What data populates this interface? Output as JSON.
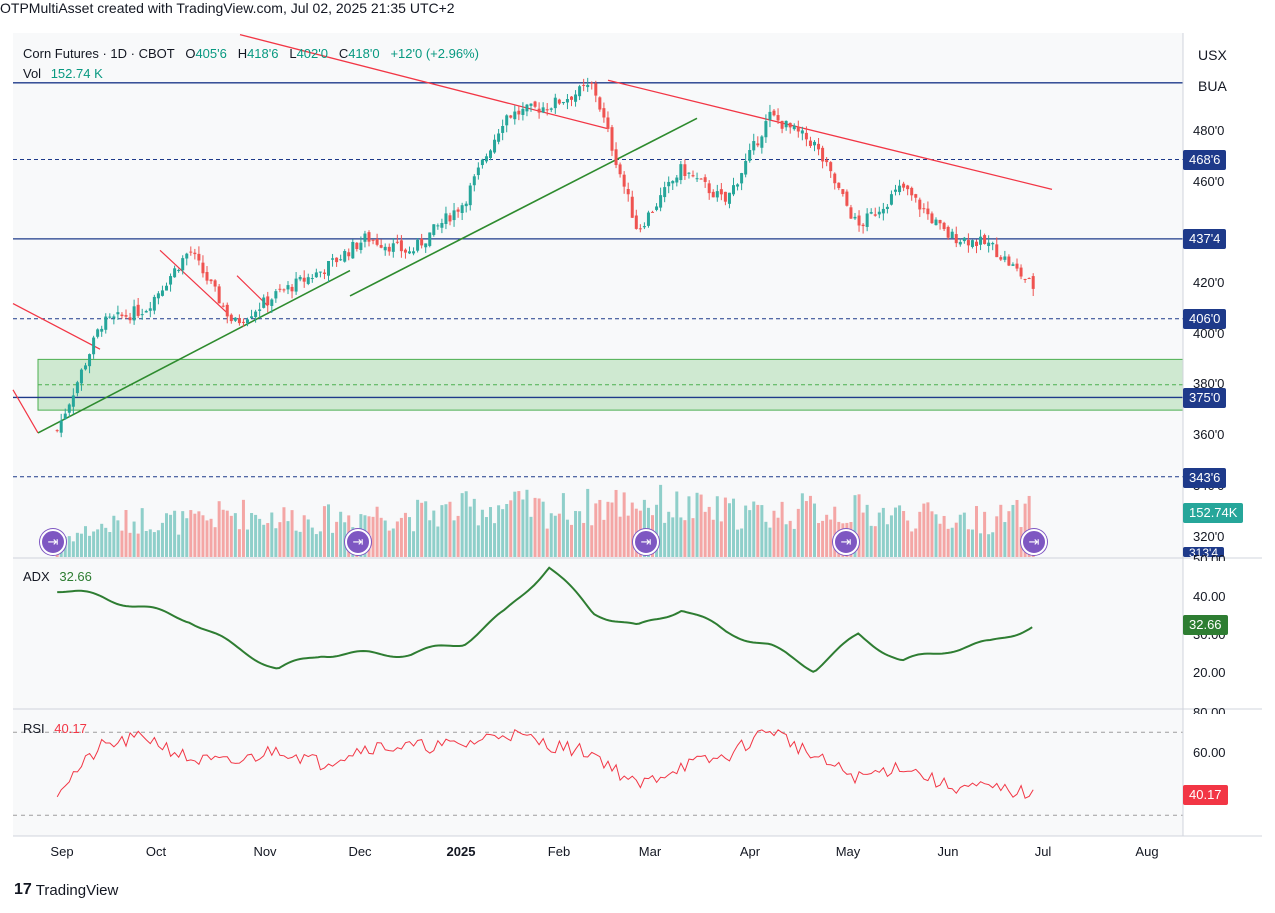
{
  "caption": "OTPMultiAsset created with TradingView.com, Jul 02, 2025 21:35 UTC+2",
  "symbol_boxes": [
    "USX",
    "BUA"
  ],
  "legend": {
    "title": "Corn Futures · 1D · CBOT",
    "open_label": "O",
    "open": "405'6",
    "high_label": "H",
    "high": "418'6",
    "low_label": "L",
    "low": "402'0",
    "close_label": "C",
    "close": "418'0",
    "change": "+12'0 (+2.96%)",
    "vol_label": "Vol",
    "vol": "152.74 K"
  },
  "price_axis_ticks": [
    "480'0",
    "460'0",
    "420'0",
    "400'0",
    "380'0",
    "360'0",
    "340'0",
    "320'0"
  ],
  "price_tags": [
    {
      "label": "468'6",
      "price": 468.75,
      "style": "dashed"
    },
    {
      "label": "437'4",
      "price": 437.5,
      "style": "solid"
    },
    {
      "label": "406'0",
      "price": 406.0,
      "style": "dashed"
    },
    {
      "label": "375'0",
      "price": 375.0,
      "style": "solid"
    },
    {
      "label": "343'6",
      "price": 343.75,
      "style": "dashed"
    }
  ],
  "partial_tags": {
    "top_unlabeled_level": 499,
    "bottom_clipped_tag": "313'4"
  },
  "vol_tag": "152.74K",
  "adx": {
    "label": "ADX",
    "value": "32.66",
    "ticks": [
      "50.00",
      "40.00",
      "30.00",
      "20.00"
    ]
  },
  "rsi": {
    "label": "RSI",
    "value": "40.17",
    "ticks": [
      "80.00",
      "60.00",
      "40.00"
    ]
  },
  "x_axis_labels": [
    {
      "label": "Sep",
      "bold": false
    },
    {
      "label": "Oct",
      "bold": false
    },
    {
      "label": "Nov",
      "bold": false
    },
    {
      "label": "Dec",
      "bold": false
    },
    {
      "label": "2025",
      "bold": true
    },
    {
      "label": "Feb",
      "bold": false
    },
    {
      "label": "Mar",
      "bold": false
    },
    {
      "label": "Apr",
      "bold": false
    },
    {
      "label": "May",
      "bold": false
    },
    {
      "label": "Jun",
      "bold": false
    },
    {
      "label": "Jul",
      "bold": false
    },
    {
      "label": "Aug",
      "bold": false
    }
  ],
  "branding": "TradingView",
  "colors": {
    "up": "#26a69a",
    "down": "#ef5350",
    "level": "#1e3a8a",
    "trend_down": "#f23645",
    "trend_up": "#2e8b2e",
    "zone": "#c8e6c9",
    "adx": "#2e7d32",
    "rsi": "#f23645"
  },
  "chart_data": {
    "type": "candlestick",
    "title": "Corn Futures · 1D · CBOT",
    "x": [
      "2024-08-26",
      "2024-09-09",
      "2024-09-23",
      "2024-10-07",
      "2024-10-21",
      "2024-11-04",
      "2024-11-18",
      "2024-12-02",
      "2024-12-16",
      "2025-01-02",
      "2025-01-15",
      "2025-01-29",
      "2025-02-12",
      "2025-02-26",
      "2025-03-12",
      "2025-03-26",
      "2025-04-09",
      "2025-04-23",
      "2025-05-07",
      "2025-05-21",
      "2025-06-04",
      "2025-06-18",
      "2025-07-02"
    ],
    "series": [
      {
        "name": "Price",
        "values": [
          362,
          404,
          410,
          433,
          404,
          416,
          425,
          438,
          432,
          452,
          486,
          490,
          498,
          441,
          465,
          452,
          486,
          475,
          442,
          458,
          439,
          435,
          418
        ]
      },
      {
        "name": "Vol",
        "values": [
          60,
          100,
          130,
          115,
          150,
          135,
          125,
          145,
          140,
          160,
          175,
          155,
          170,
          190,
          165,
          150,
          145,
          160,
          155,
          140,
          130,
          125,
          152.74
        ]
      },
      {
        "name": "ADX",
        "values": [
          42,
          40,
          37,
          34,
          27,
          21,
          25,
          25,
          25,
          28,
          36,
          48,
          36,
          32,
          37,
          31,
          27,
          21,
          30,
          23,
          26,
          28,
          32.66
        ]
      },
      {
        "name": "RSI",
        "values": [
          42,
          63,
          68,
          57,
          55,
          62,
          55,
          63,
          63,
          64,
          70,
          64,
          60,
          44,
          54,
          58,
          72,
          58,
          48,
          54,
          44,
          43,
          40.17
        ]
      }
    ],
    "ylim": [
      315,
      510
    ],
    "levels": [
      499,
      468.75,
      437.5,
      406.0,
      375.0,
      343.75
    ],
    "zone": [
      370,
      390
    ],
    "adx_ylim": [
      12,
      52
    ],
    "rsi_ylim": [
      25,
      82
    ]
  }
}
